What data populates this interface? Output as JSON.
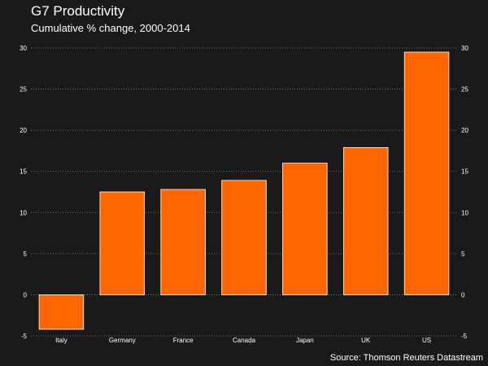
{
  "chart_data": {
    "type": "bar",
    "title": "G7 Productivity",
    "subtitle": "Cumulative % change, 2000-2014",
    "categories": [
      "Italy",
      "Germany",
      "France",
      "Canada",
      "Japan",
      "UK",
      "US"
    ],
    "values": [
      -4.2,
      12.5,
      12.8,
      13.9,
      16.0,
      17.9,
      29.5
    ],
    "ylim": [
      -5,
      30
    ],
    "yticks": [
      -5,
      0,
      5,
      10,
      15,
      20,
      25,
      30
    ],
    "grid": true,
    "bar_color": "#ff6600",
    "background_color": "#1a1a1a",
    "source": "Source: Thomson Reuters Datastream"
  }
}
